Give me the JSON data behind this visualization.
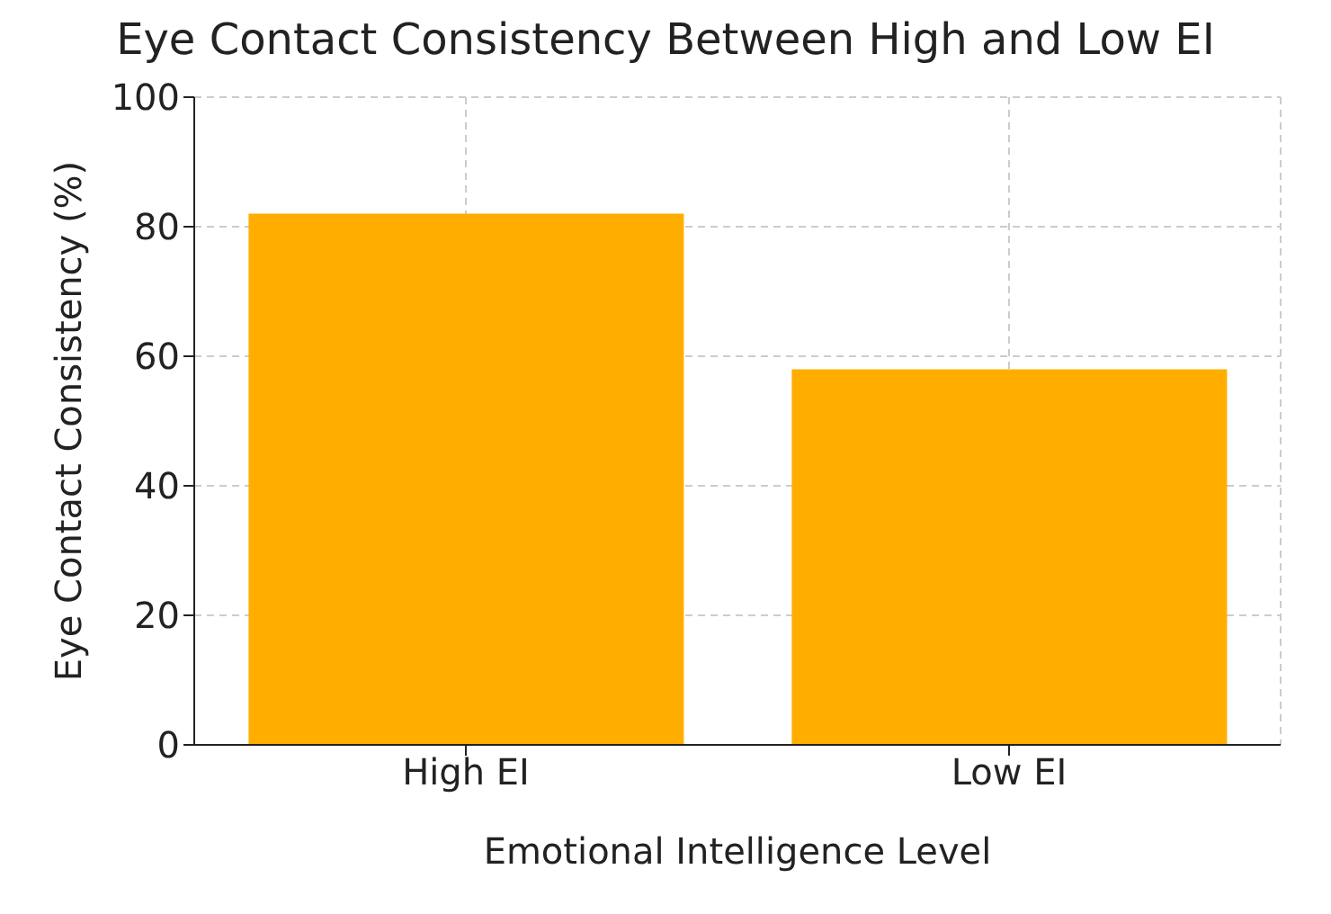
{
  "chart_data": {
    "type": "bar",
    "title": "Eye Contact Consistency Between High and Low EI",
    "xlabel": "Emotional Intelligence Level",
    "ylabel": "Eye Contact Consistency (%)",
    "categories": [
      "High EI",
      "Low EI"
    ],
    "values": [
      82,
      58
    ],
    "color": "#ffae00",
    "ylim": [
      0,
      100
    ],
    "yticks": [
      0,
      20,
      40,
      60,
      80,
      100
    ],
    "grid": true
  }
}
